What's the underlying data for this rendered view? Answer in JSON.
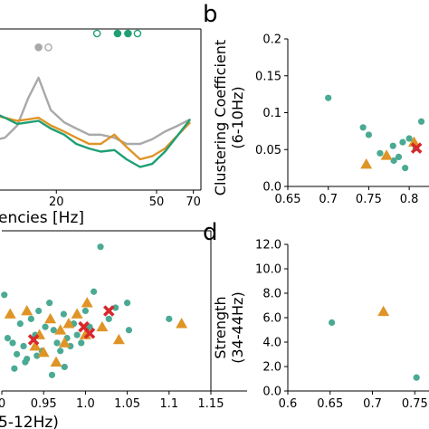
{
  "colors": {
    "teal": "#4aaa94",
    "teal_line": "#1f9f74",
    "orange": "#df9427",
    "gray": "#a9a9a9",
    "red": "#d8282b"
  },
  "chart_data": [
    {
      "id": "a",
      "type": "line",
      "panel_label": "",
      "xlabel_visible": "encies [Hz]",
      "ylabel": "",
      "xscale": "log",
      "xlim": [
        11,
        75
      ],
      "ylim": [
        0,
        1
      ],
      "xticks": [
        20,
        50,
        70
      ],
      "xtick_labels": [
        "20",
        "50",
        "70"
      ],
      "x": [
        11,
        12.5,
        14,
        15.5,
        17,
        19,
        21.5,
        24,
        27,
        30,
        34,
        38,
        43,
        48,
        54,
        61,
        68
      ],
      "series": [
        {
          "color_key": "gray",
          "values": [
            0.32,
            0.34,
            0.42,
            0.6,
            0.73,
            0.52,
            0.44,
            0.4,
            0.36,
            0.36,
            0.34,
            0.3,
            0.3,
            0.33,
            0.38,
            0.42,
            0.46
          ]
        },
        {
          "color_key": "orange",
          "values": [
            0.49,
            0.47,
            0.45,
            0.46,
            0.47,
            0.42,
            0.38,
            0.34,
            0.3,
            0.3,
            0.36,
            0.28,
            0.2,
            0.22,
            0.27,
            0.36,
            0.44
          ]
        },
        {
          "color_key": "teal_line",
          "values": [
            0.51,
            0.47,
            0.43,
            0.44,
            0.45,
            0.4,
            0.36,
            0.3,
            0.27,
            0.25,
            0.26,
            0.2,
            0.15,
            0.17,
            0.25,
            0.36,
            0.46
          ]
        }
      ],
      "markers": [
        {
          "x": 17.0,
          "y": 0.91,
          "color_key": "gray",
          "filled": true
        },
        {
          "x": 18.6,
          "y": 0.91,
          "color_key": "gray",
          "filled": false
        },
        {
          "x": 29.0,
          "y": 1.0,
          "color_key": "teal_line",
          "filled": false
        },
        {
          "x": 35.0,
          "y": 1.0,
          "color_key": "teal_line",
          "filled": true
        },
        {
          "x": 38.5,
          "y": 1.0,
          "color_key": "teal_line",
          "filled": true
        },
        {
          "x": 42.0,
          "y": 1.0,
          "color_key": "teal_line",
          "filled": false
        }
      ]
    },
    {
      "id": "b",
      "type": "scatter",
      "panel_label": "b",
      "ylabel_lines": [
        "Clustering Coefficient",
        "(6-10Hz)"
      ],
      "xlim": [
        0.65,
        0.82
      ],
      "ylim": [
        0,
        0.2
      ],
      "xticks": [
        0.65,
        0.7,
        0.75,
        0.8
      ],
      "xtick_labels": [
        "0.65",
        "0.7",
        "0.75",
        "0.8"
      ],
      "yticks": [
        0,
        0.05,
        0.1,
        0.15,
        0.2
      ],
      "ytick_labels": [
        "0.0",
        "0.05",
        "0.1",
        "0.15",
        "0.2"
      ],
      "groups": [
        {
          "marker": "circle",
          "color_key": "teal",
          "x": [
            0.7,
            0.743,
            0.75,
            0.764,
            0.78,
            0.781,
            0.795,
            0.8,
            0.808,
            0.815,
            0.787,
            0.792
          ],
          "y": [
            0.12,
            0.08,
            0.07,
            0.045,
            0.055,
            0.035,
            0.025,
            0.065,
            0.052,
            0.088,
            0.04,
            0.06
          ]
        },
        {
          "marker": "triangle",
          "color_key": "orange",
          "x": [
            0.747,
            0.772,
            0.806
          ],
          "y": [
            0.03,
            0.042,
            0.06
          ]
        },
        {
          "marker": "x",
          "color_key": "red",
          "x": [
            0.809
          ],
          "y": [
            0.052
          ]
        }
      ]
    },
    {
      "id": "c",
      "type": "scatter",
      "panel_label": "",
      "xlabel_visible": "5-12Hz)",
      "xlim": [
        0.9,
        1.15
      ],
      "ylim": [
        0,
        1
      ],
      "xticks": [
        0.9,
        0.95,
        1.0,
        1.05,
        1.1,
        1.15
      ],
      "xtick_labels": [
        "0",
        "0.95",
        "1.0",
        "1.05",
        "1.1",
        "1.15"
      ],
      "groups": [
        {
          "marker": "circle",
          "color_key": "teal",
          "x": [
            0.903,
            0.907,
            0.913,
            0.918,
            0.922,
            0.926,
            0.93,
            0.935,
            0.94,
            0.944,
            0.948,
            0.952,
            0.957,
            0.962,
            0.966,
            0.97,
            0.974,
            0.978,
            0.982,
            0.986,
            0.99,
            0.995,
            1.0,
            1.01,
            1.018,
            1.028,
            1.036,
            1.05,
            0.915,
            0.928,
            0.942,
            0.96,
            0.975,
            1.005,
            1.052,
            1.1
          ],
          "y": [
            0.6,
            0.33,
            0.3,
            0.23,
            0.42,
            0.28,
            0.2,
            0.45,
            0.35,
            0.5,
            0.25,
            0.4,
            0.55,
            0.38,
            0.3,
            0.25,
            0.48,
            0.33,
            0.28,
            0.42,
            0.35,
            0.3,
            0.5,
            0.62,
            0.9,
            0.45,
            0.52,
            0.55,
            0.14,
            0.18,
            0.22,
            0.1,
            0.15,
            0.4,
            0.38,
            0.45
          ]
        },
        {
          "marker": "triangle",
          "color_key": "orange",
          "x": [
            0.91,
            0.93,
            0.945,
            0.958,
            0.97,
            0.98,
            0.99,
            1.0,
            1.02,
            1.04,
            1.115,
            0.965,
            0.94,
            0.95,
            0.975,
            1.002
          ],
          "y": [
            0.48,
            0.5,
            0.35,
            0.45,
            0.38,
            0.42,
            0.48,
            0.35,
            0.4,
            0.32,
            0.42,
            0.18,
            0.28,
            0.24,
            0.3,
            0.55
          ]
        },
        {
          "marker": "x",
          "color_key": "red",
          "x": [
            0.938,
            0.998,
            1.005,
            1.028
          ],
          "y": [
            0.32,
            0.4,
            0.36,
            0.5
          ]
        }
      ]
    },
    {
      "id": "d",
      "type": "scatter",
      "panel_label": "d",
      "ylabel_lines": [
        "Strength",
        "(34-44Hz)"
      ],
      "xlim": [
        0.6,
        0.77
      ],
      "ylim": [
        0,
        12
      ],
      "xticks": [
        0.6,
        0.65,
        0.7,
        0.75
      ],
      "xtick_labels": [
        "0.6",
        "0.65",
        "0.7",
        "0.75"
      ],
      "yticks": [
        0,
        2,
        4,
        6,
        8,
        10,
        12
      ],
      "ytick_labels": [
        "0.0",
        "2.0",
        "4.0",
        "6.0",
        "8.0",
        "10.0",
        "12.0"
      ],
      "groups": [
        {
          "marker": "circle",
          "color_key": "teal",
          "x": [
            0.652,
            0.713,
            0.752
          ],
          "y": [
            5.6,
            6.4,
            1.1
          ]
        },
        {
          "marker": "triangle",
          "color_key": "orange",
          "x": [
            0.713
          ],
          "y": [
            6.5
          ]
        }
      ]
    }
  ]
}
